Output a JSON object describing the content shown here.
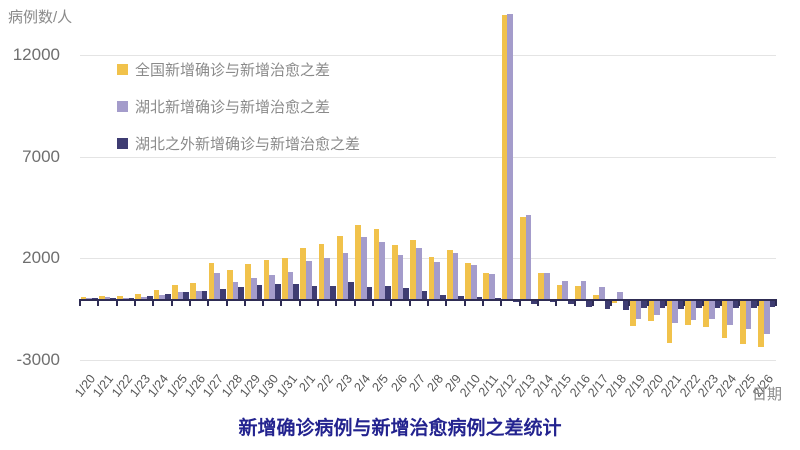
{
  "chart_data": {
    "type": "bar",
    "title": "新增确诊病例与新增治愈病例之差统计",
    "xlabel": "日期",
    "ylabel": "病例数/人",
    "y_ticks": [
      12000,
      7000,
      2000,
      -3000
    ],
    "ylim": [
      -3000,
      14200
    ],
    "grid": true,
    "legend_position": "top-left-inside",
    "categories": [
      "1/20",
      "1/21",
      "1/22",
      "1/23",
      "1/24",
      "1/25",
      "1/26",
      "1/27",
      "1/28",
      "1/29",
      "1/30",
      "1/31",
      "2/1",
      "2/2",
      "2/3",
      "2/4",
      "2/5",
      "2/6",
      "2/7",
      "2/8",
      "2/9",
      "2/10",
      "2/11",
      "2/12",
      "2/13",
      "2/14",
      "2/15",
      "2/16",
      "2/17",
      "2/18",
      "2/19",
      "2/20",
      "2/21",
      "2/22",
      "2/23",
      "2/24",
      "2/25",
      "2/26"
    ],
    "series": [
      {
        "key": "national",
        "name": "全国新增确诊与新增治愈之差",
        "color": "#f1c24b",
        "values": [
          77,
          148,
          131,
          253,
          441,
          677,
          767,
          1762,
          1416,
          1716,
          1935,
          2030,
          2505,
          2682,
          3078,
          3625,
          3433,
          2680,
          2889,
          2056,
          2430,
          1763,
          1271,
          13980,
          4010,
          1268,
          686,
          623,
          200,
          -75,
          -1245,
          -1000,
          -2050,
          -1195,
          -1265,
          -1805,
          -2130,
          -2245
        ]
      },
      {
        "key": "hubei",
        "name": "湖北新增确诊与新增治愈之差",
        "color": "#a49ccb",
        "values": [
          72,
          105,
          69,
          104,
          179,
          320,
          369,
          1289,
          815,
          1022,
          1199,
          1306,
          1870,
          2023,
          2244,
          3031,
          2794,
          2149,
          2485,
          1844,
          2262,
          1670,
          1221,
          14040,
          4133,
          1292,
          890,
          900,
          584,
          360,
          -880,
          -670,
          -1100,
          -935,
          -900,
          -1200,
          -1395,
          -1640
        ]
      },
      {
        "key": "non-hubei",
        "name": "湖北之外新增确诊与新增治愈之差",
        "color": "#3e3c72",
        "values": [
          5,
          43,
          62,
          149,
          262,
          357,
          398,
          473,
          601,
          694,
          736,
          724,
          635,
          659,
          834,
          594,
          639,
          531,
          404,
          212,
          168,
          93,
          50,
          -60,
          -125,
          -25,
          -140,
          -280,
          -385,
          -435,
          -365,
          -330,
          -390,
          -360,
          -330,
          -330,
          -330,
          -280
        ]
      }
    ]
  }
}
